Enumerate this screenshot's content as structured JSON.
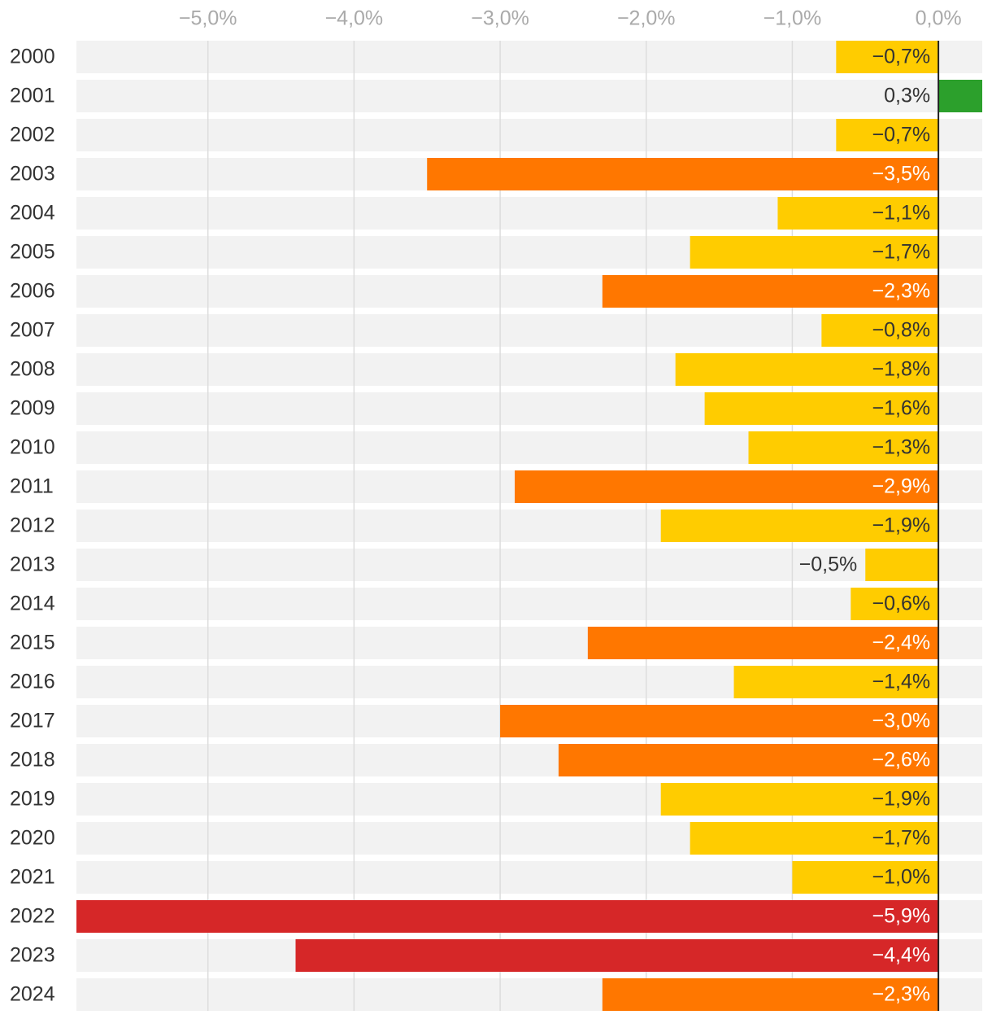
{
  "chart_data": {
    "type": "hbar",
    "categories": [
      "2000",
      "2001",
      "2002",
      "2003",
      "2004",
      "2005",
      "2006",
      "2007",
      "2008",
      "2009",
      "2010",
      "2011",
      "2012",
      "2013",
      "2014",
      "2015",
      "2016",
      "2017",
      "2018",
      "2019",
      "2020",
      "2021",
      "2022",
      "2023",
      "2024"
    ],
    "values": [
      -0.7,
      0.3,
      -0.7,
      -3.5,
      -1.1,
      -1.7,
      -2.3,
      -0.8,
      -1.8,
      -1.6,
      -1.3,
      -2.9,
      -1.9,
      -0.5,
      -0.6,
      -2.4,
      -1.4,
      -3.0,
      -2.6,
      -1.9,
      -1.7,
      -1.0,
      -5.9,
      -4.4,
      -2.3
    ],
    "value_labels": [
      "−0,7%",
      "0,3%",
      "−0,7%",
      "−3,5%",
      "−1,1%",
      "−1,7%",
      "−2,3%",
      "−0,8%",
      "−1,8%",
      "−1,6%",
      "−1,3%",
      "−2,9%",
      "−1,9%",
      "−0,5%",
      "−0,6%",
      "−2,4%",
      "−1,4%",
      "−3,0%",
      "−2,6%",
      "−1,9%",
      "−1,7%",
      "−1,0%",
      "−5,9%",
      "−4,4%",
      "−2,3%"
    ],
    "colors": [
      "#ffcc00",
      "#2ca02c",
      "#ffcc00",
      "#ff7700",
      "#ffcc00",
      "#ffcc00",
      "#ff7700",
      "#ffcc00",
      "#ffcc00",
      "#ffcc00",
      "#ffcc00",
      "#ff7700",
      "#ffcc00",
      "#ffcc00",
      "#ffcc00",
      "#ff7700",
      "#ffcc00",
      "#ff7700",
      "#ff7700",
      "#ffcc00",
      "#ffcc00",
      "#ffcc00",
      "#d62728",
      "#d62728",
      "#ff7700"
    ],
    "xlim": [
      -5.9,
      0.3
    ],
    "xticks": [
      {
        "value": -5,
        "label": "−5,0%"
      },
      {
        "value": -4,
        "label": "−4,0%"
      },
      {
        "value": -3,
        "label": "−3,0%"
      },
      {
        "value": -2,
        "label": "−2,0%"
      },
      {
        "value": -1,
        "label": "−1,0%"
      },
      {
        "value": 0,
        "label": "0,0%"
      }
    ],
    "grid": true
  }
}
